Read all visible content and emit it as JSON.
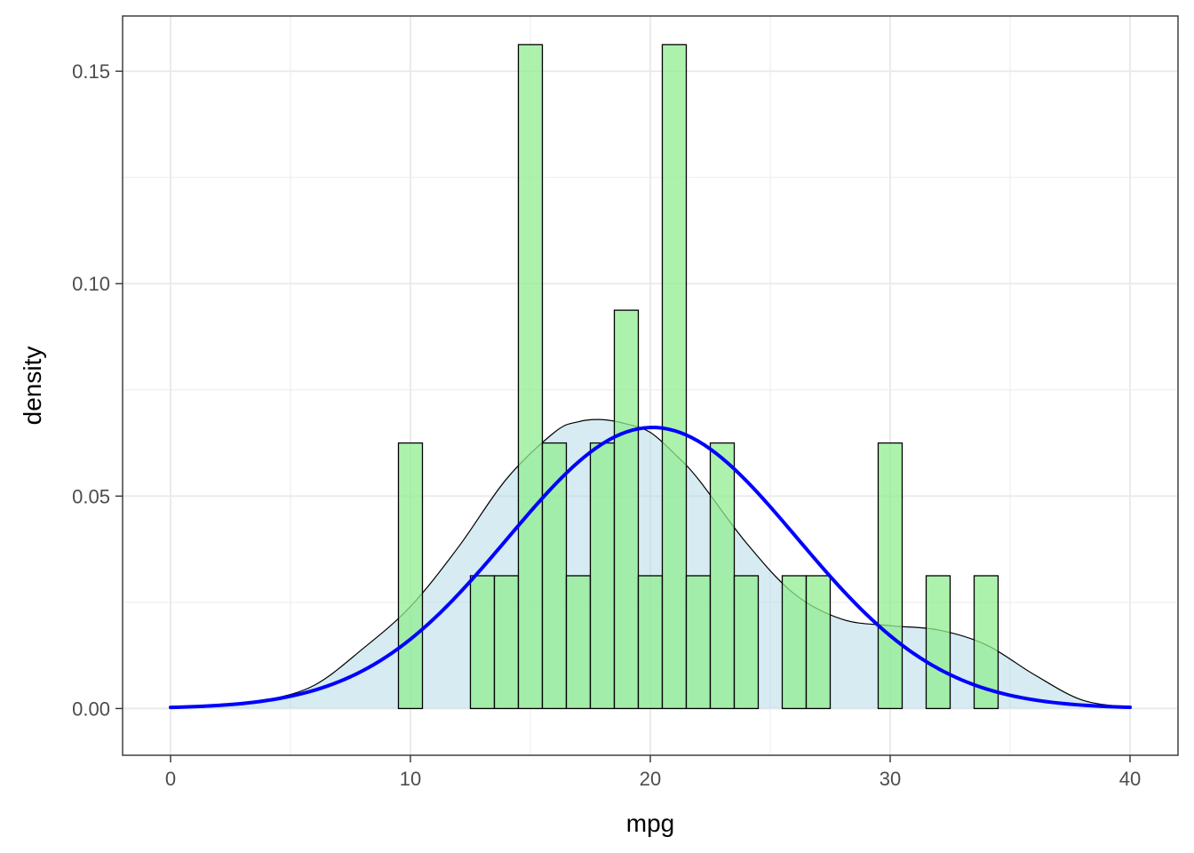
{
  "chart_data": {
    "type": "bar",
    "title": "",
    "xlabel": "mpg",
    "ylabel": "density",
    "xlim": [
      -2,
      42
    ],
    "ylim": [
      -0.011,
      0.163
    ],
    "x_ticks": [
      0,
      10,
      20,
      30,
      40
    ],
    "x_tick_labels": [
      "0",
      "10",
      "20",
      "30",
      "40"
    ],
    "y_ticks": [
      0.0,
      0.05,
      0.1,
      0.15
    ],
    "y_tick_labels": [
      "0.00",
      "0.05",
      "0.10",
      "0.15"
    ],
    "grid": true,
    "theme": "bw",
    "series": [
      {
        "kind": "histogram",
        "binwidth": 1,
        "fill": "#90EE90",
        "stroke": "#000000",
        "bins": [
          {
            "x": 10,
            "density": 0.0625
          },
          {
            "x": 13,
            "density": 0.03125
          },
          {
            "x": 14,
            "density": 0.03125
          },
          {
            "x": 15,
            "density": 0.15625
          },
          {
            "x": 16,
            "density": 0.0625
          },
          {
            "x": 17,
            "density": 0.03125
          },
          {
            "x": 18,
            "density": 0.0625
          },
          {
            "x": 19,
            "density": 0.09375
          },
          {
            "x": 20,
            "density": 0.03125
          },
          {
            "x": 21,
            "density": 0.15625
          },
          {
            "x": 22,
            "density": 0.03125
          },
          {
            "x": 23,
            "density": 0.0625
          },
          {
            "x": 24,
            "density": 0.03125
          },
          {
            "x": 26,
            "density": 0.03125
          },
          {
            "x": 27,
            "density": 0.03125
          },
          {
            "x": 30,
            "density": 0.0625
          },
          {
            "x": 32,
            "density": 0.03125
          },
          {
            "x": 34,
            "density": 0.03125
          }
        ]
      },
      {
        "kind": "kernel-density",
        "fill": "#ADD8E6",
        "stroke": "#000000",
        "x": [
          0,
          2,
          4,
          6,
          8,
          10,
          12,
          14,
          16,
          17,
          18,
          19,
          20,
          21,
          22,
          24,
          26,
          28,
          30,
          32,
          34,
          36,
          38,
          40
        ],
        "y": [
          0.0001,
          0.0005,
          0.002,
          0.0055,
          0.014,
          0.024,
          0.038,
          0.054,
          0.065,
          0.0675,
          0.068,
          0.067,
          0.065,
          0.06,
          0.054,
          0.039,
          0.027,
          0.021,
          0.0195,
          0.0185,
          0.015,
          0.008,
          0.002,
          0.0003
        ]
      },
      {
        "kind": "normal-fit",
        "stroke": "#0000FF",
        "mean": 20.09,
        "sd": 6.03
      }
    ]
  }
}
